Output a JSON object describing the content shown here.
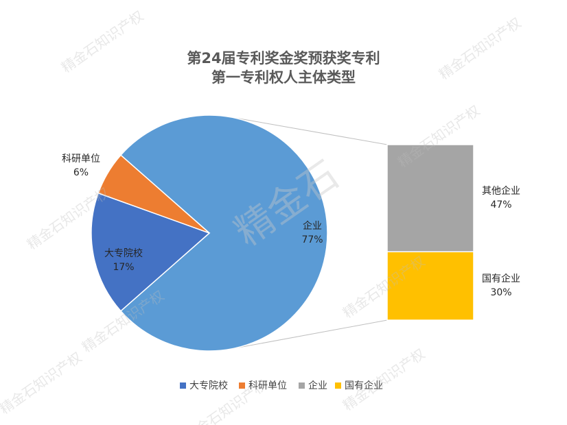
{
  "chart_data": {
    "type": "pie-of-bar",
    "title": [
      "第24届专利奖金奖预获奖专利",
      "第一专利权人主体类型"
    ],
    "pie": {
      "categories": [
        "企业",
        "大专院校",
        "科研单位"
      ],
      "values": [
        77,
        17,
        6
      ],
      "value_labels": [
        "77%",
        "17%",
        "6%"
      ],
      "colors": [
        "#5b9bd5",
        "#4472c4",
        "#ed7d31"
      ]
    },
    "bar": {
      "categories": [
        "其他企业",
        "国有企业"
      ],
      "values": [
        47,
        30
      ],
      "value_labels": [
        "47%",
        "30%"
      ],
      "colors": [
        "#a5a5a5",
        "#ffc000"
      ]
    },
    "legend": [
      {
        "name": "大专院校",
        "color": "#4472c4"
      },
      {
        "name": "科研单位",
        "color": "#ed7d31"
      },
      {
        "name": "企业",
        "color": "#a5a5a5"
      },
      {
        "name": "国有企业",
        "color": "#ffc000"
      }
    ],
    "watermark": "精金石知识产权",
    "watermark_logo": "精金石"
  }
}
